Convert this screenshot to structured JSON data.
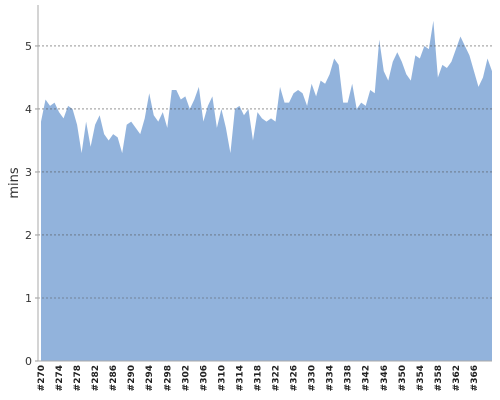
{
  "chart_data": {
    "type": "area",
    "y_label": "mins",
    "color": "#92b3dc",
    "categories": [
      "#270",
      null,
      null,
      null,
      "#274",
      null,
      null,
      null,
      "#278",
      null,
      null,
      null,
      "#282",
      null,
      null,
      null,
      "#286",
      null,
      null,
      null,
      "#290",
      null,
      null,
      null,
      "#294",
      null,
      null,
      null,
      "#298",
      null,
      null,
      null,
      "#302",
      null,
      null,
      null,
      "#306",
      null,
      null,
      null,
      "#310",
      null,
      null,
      null,
      "#314",
      null,
      null,
      null,
      "#318",
      null,
      null,
      null,
      "#322",
      null,
      null,
      null,
      "#326",
      null,
      null,
      null,
      "#330",
      null,
      null,
      null,
      "#334",
      null,
      null,
      null,
      "#338",
      null,
      null,
      null,
      "#342",
      null,
      null,
      null,
      "#346",
      null,
      null,
      null,
      "#350",
      null,
      null,
      null,
      "#354",
      null,
      null,
      null,
      "#358",
      null,
      null,
      null,
      "#362",
      null,
      null,
      null,
      "#366",
      null,
      null,
      null,
      null
    ],
    "values": [
      3.8,
      4.15,
      4.05,
      4.1,
      3.95,
      3.85,
      4.05,
      4.0,
      3.75,
      3.3,
      3.8,
      3.4,
      3.75,
      3.9,
      3.6,
      3.5,
      3.6,
      3.55,
      3.3,
      3.75,
      3.8,
      3.7,
      3.6,
      3.85,
      4.25,
      3.9,
      3.8,
      3.95,
      3.7,
      4.3,
      4.3,
      4.15,
      4.2,
      4.0,
      4.15,
      4.35,
      3.8,
      4.05,
      4.2,
      3.7,
      4.0,
      3.7,
      3.3,
      4.0,
      4.05,
      3.9,
      4.0,
      3.5,
      3.95,
      3.85,
      3.8,
      3.85,
      3.8,
      4.35,
      4.1,
      4.1,
      4.25,
      4.3,
      4.25,
      4.05,
      4.4,
      4.2,
      4.45,
      4.4,
      4.55,
      4.8,
      4.7,
      4.1,
      4.1,
      4.4,
      4.0,
      4.1,
      4.05,
      4.3,
      4.25,
      5.1,
      4.6,
      4.45,
      4.75,
      4.9,
      4.75,
      4.55,
      4.45,
      4.85,
      4.8,
      5.0,
      4.95,
      5.4,
      4.5,
      4.7,
      4.65,
      4.75,
      4.95,
      5.15,
      5.0,
      4.85,
      4.6,
      4.35,
      4.5,
      4.8,
      4.6
    ],
    "ylim": [
      0,
      5.65
    ],
    "yticks": [
      0,
      1,
      2,
      3,
      4,
      5
    ],
    "grid": true
  }
}
